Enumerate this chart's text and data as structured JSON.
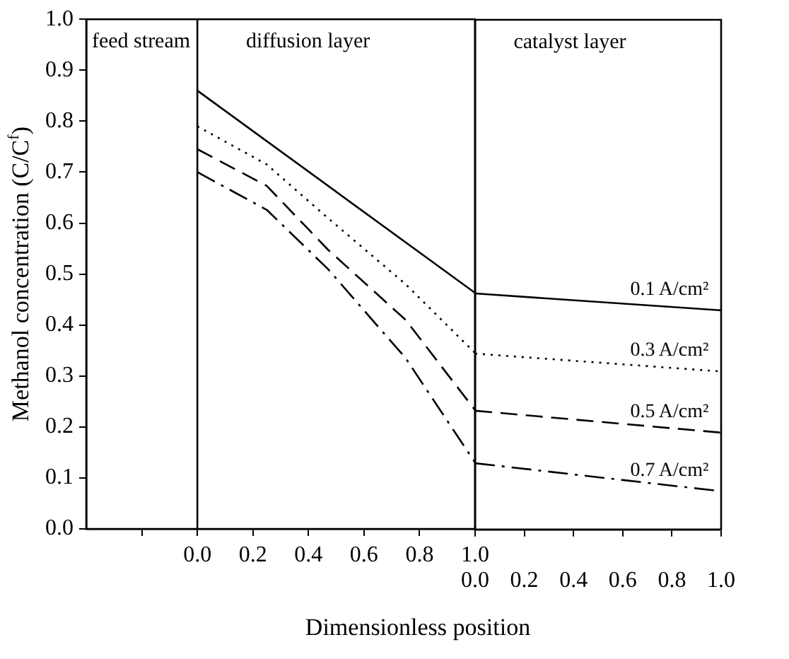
{
  "chart_data": [
    {
      "type": "line",
      "xlabel": "Dimensionless position",
      "ylabel": "Methanol concentration (C/C$^{f}$)",
      "xlim": [
        -0.4,
        1
      ],
      "ylim": [
        0,
        1
      ],
      "xticks": [
        {
          "value": -0.2,
          "label": null
        },
        {
          "value": 0,
          "label": "0.0"
        },
        0.2,
        0.4,
        0.6,
        0.8,
        {
          "value": 1,
          "label": "1.0"
        }
      ],
      "yticks": [
        {
          "value": 0,
          "label": "0.0"
        },
        0.1,
        0.2,
        0.3,
        0.4,
        0.5,
        0.6,
        0.7,
        0.8,
        0.9,
        {
          "value": 1,
          "label": "1.0"
        }
      ],
      "grid": false,
      "legend": false,
      "ref_lines": [
        {
          "axis": "x",
          "value": 0,
          "color": "#000000"
        }
      ],
      "annotations": [
        "feed stream",
        "diffusion layer"
      ],
      "series": [
        {
          "color": "#000000",
          "line_style": "solid",
          "x": [
            0,
            1
          ],
          "values": [
            0.86,
            0.463
          ]
        },
        {
          "color": "#000000",
          "line_style": "dotted",
          "x": [
            0,
            0.25,
            0.47,
            0.75,
            1
          ],
          "values": [
            0.79,
            0.715,
            0.61,
            0.48,
            0.345
          ]
        },
        {
          "color": "#000000",
          "line_style": "dashed",
          "x": [
            0,
            0.25,
            0.47,
            0.75,
            1
          ],
          "values": [
            0.745,
            0.673,
            0.548,
            0.41,
            0.233
          ]
        },
        {
          "color": "#000000",
          "line_style": "dashdot",
          "x": [
            0,
            0.25,
            0.47,
            0.75,
            1
          ],
          "values": [
            0.7,
            0.626,
            0.51,
            0.335,
            0.13
          ]
        }
      ]
    },
    {
      "type": "line",
      "xlim": [
        0,
        1
      ],
      "ylim": [
        0,
        1
      ],
      "xticks": [
        {
          "value": 0,
          "label": "0.0"
        },
        0.2,
        0.4,
        0.6,
        0.8,
        {
          "value": 1,
          "label": "1.0"
        }
      ],
      "tick_labels": "x",
      "grid": false,
      "legend": false,
      "annotations": [
        "catalyst layer"
      ],
      "series": [
        {
          "name": "0.1 A/cm²",
          "color": "#000000",
          "line_style": "solid",
          "x": [
            0,
            1
          ],
          "values": [
            0.463,
            0.43
          ]
        },
        {
          "name": "0.3 A/cm²",
          "color": "#000000",
          "line_style": "dotted",
          "x": [
            0,
            1
          ],
          "values": [
            0.345,
            0.31
          ]
        },
        {
          "name": "0.5 A/cm²",
          "color": "#000000",
          "line_style": "dashed",
          "x": [
            0,
            1
          ],
          "values": [
            0.233,
            0.19
          ]
        },
        {
          "name": "0.7 A/cm²",
          "color": "#000000",
          "line_style": "dashdot",
          "x": [
            0,
            1
          ],
          "values": [
            0.13,
            0.075
          ]
        }
      ]
    }
  ]
}
